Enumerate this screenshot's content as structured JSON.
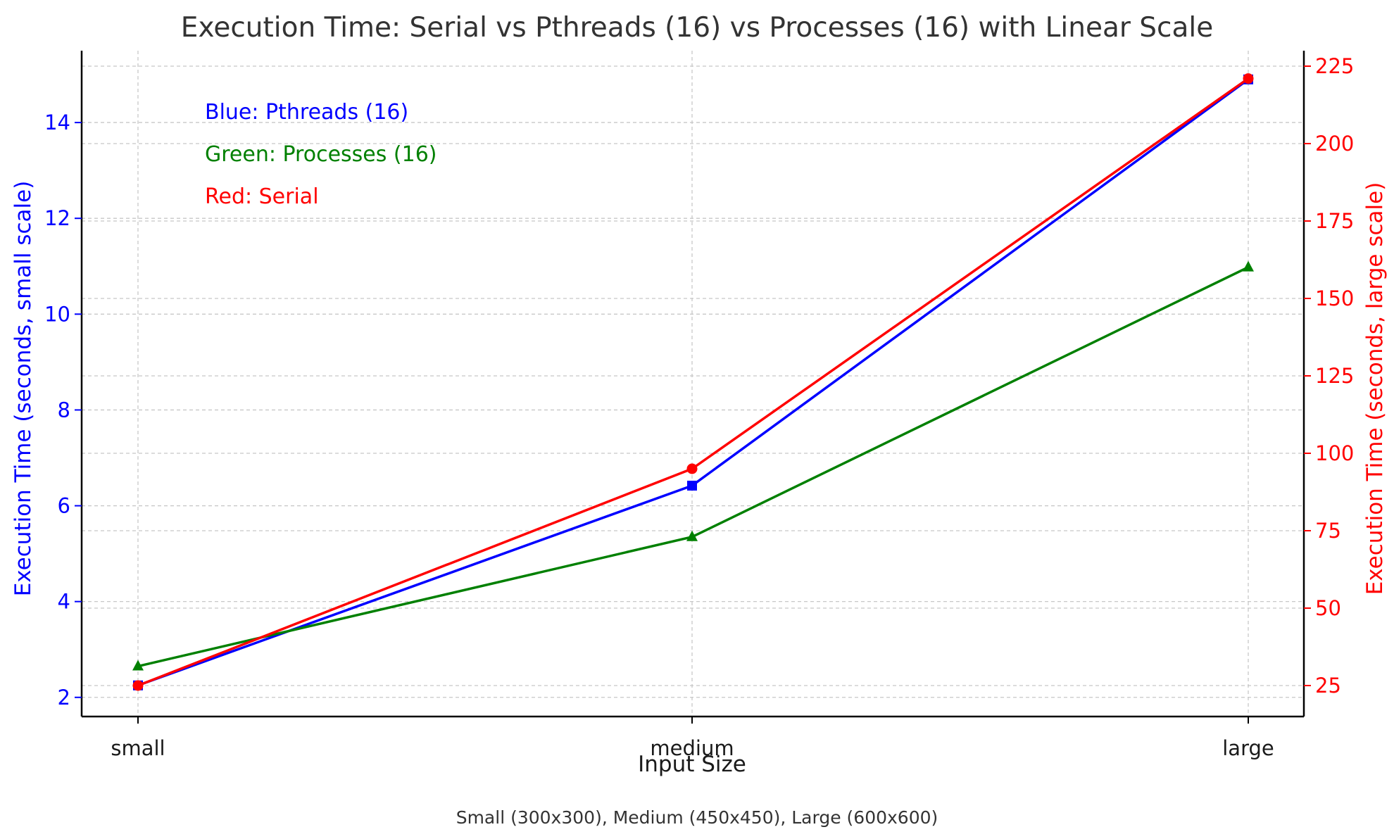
{
  "colors": {
    "pthreads": "#0000ff",
    "processes": "#008000",
    "serial": "#ff0000",
    "axis": "#000000",
    "title": "#333333"
  },
  "chart_data": {
    "type": "line",
    "title": "Execution Time: Serial vs Pthreads (16) vs Processes (16) with Linear Scale",
    "xlabel": "Input Size",
    "ylabel_left": "Execution Time (seconds, small scale)",
    "ylabel_right": "Execution Time (seconds, large scale)",
    "footnote": "Small (300x300), Medium (450x450), Large (600x600)",
    "categories": [
      "small",
      "medium",
      "large"
    ],
    "y_left": {
      "range": [
        1.6,
        15.5
      ],
      "ticks": [
        2,
        4,
        6,
        8,
        10,
        12,
        14
      ]
    },
    "y_right": {
      "range": [
        15,
        230
      ],
      "ticks": [
        25,
        50,
        75,
        100,
        125,
        150,
        175,
        200,
        225
      ]
    },
    "grid": true,
    "annotations": [
      {
        "text": "Blue: Pthreads (16)",
        "color": "#0000ff"
      },
      {
        "text": "Green: Processes (16)",
        "color": "#008000"
      },
      {
        "text": "Red: Serial",
        "color": "#ff0000"
      }
    ],
    "series": [
      {
        "key": "pthreads",
        "axis": "left",
        "marker": "square",
        "color": "#0000ff",
        "values": [
          2.25,
          6.42,
          14.9
        ]
      },
      {
        "key": "processes",
        "axis": "left",
        "marker": "triangle",
        "color": "#008000",
        "values": [
          2.65,
          5.35,
          10.98
        ]
      },
      {
        "key": "serial",
        "axis": "right",
        "marker": "circle",
        "color": "#ff0000",
        "values": [
          25,
          95,
          221
        ]
      }
    ]
  }
}
